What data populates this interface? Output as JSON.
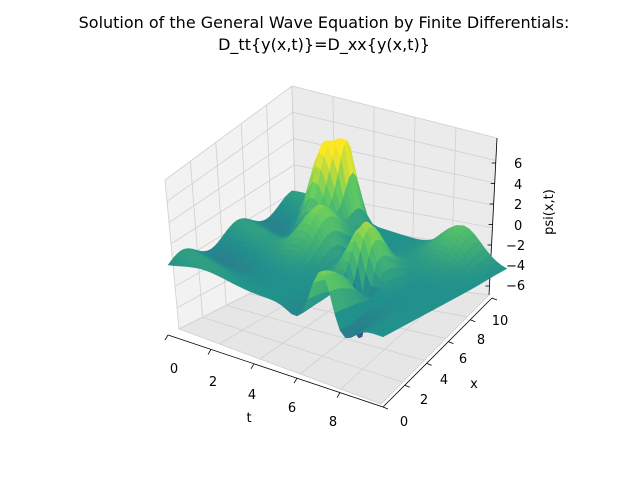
{
  "chart_data": {
    "type": "surface3d",
    "title_line1": "Solution of the General Wave Equation by Finite Differentials:",
    "title_line2": "D_tt{y(x,t)}=D_xx{y(x,t)}",
    "xlabel": "t",
    "ylabel": "x",
    "zlabel": "psi(x,t)",
    "t_range": [
      0,
      10
    ],
    "x_range": [
      0,
      10
    ],
    "z_range": [
      -7,
      7
    ],
    "t_ticks": [
      "0",
      "2",
      "4",
      "6",
      "8"
    ],
    "x_ticks": [
      "0",
      "2",
      "4",
      "6",
      "8",
      "10"
    ],
    "z_ticks": [
      "6",
      "4",
      "2",
      "0",
      "−2",
      "−4",
      "−6"
    ],
    "colormap": "viridis",
    "grid": true,
    "surface_samples_t": [
      0,
      2,
      4,
      5,
      6,
      8,
      10
    ],
    "surface_peaks": [
      {
        "t": 2.3,
        "x": 8.5,
        "psi": 7.2
      },
      {
        "t": 3.0,
        "x": 9.0,
        "psi": 6.5
      },
      {
        "t": 4.5,
        "x": 5.5,
        "psi": 5.5
      },
      {
        "t": 6.5,
        "x": 5.0,
        "psi": 5.0
      },
      {
        "t": 6.8,
        "x": 3.5,
        "psi": -6.0
      },
      {
        "t": 8.0,
        "x": 10.0,
        "psi": 3.0
      }
    ]
  }
}
